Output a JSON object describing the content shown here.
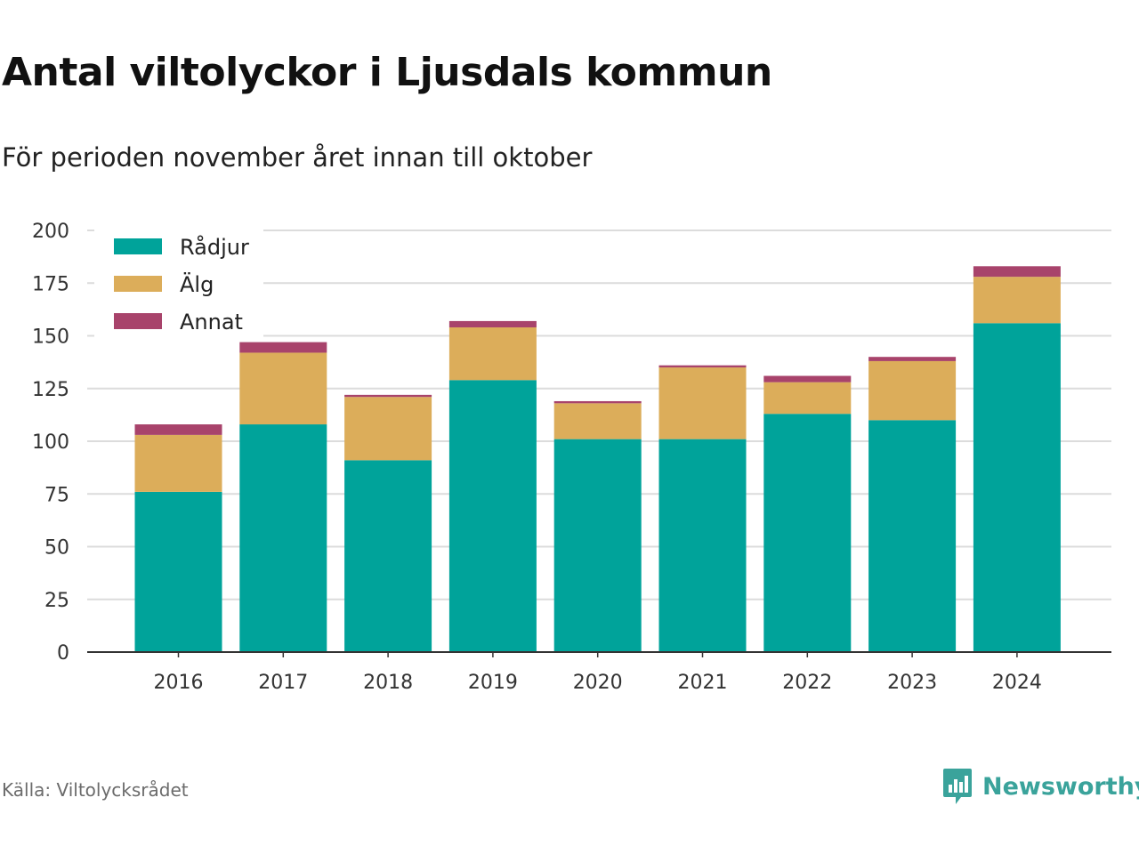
{
  "header": {
    "title": "Antal viltolyckor i Ljusdals kommun",
    "subtitle": "För perioden november året innan till oktober"
  },
  "footer": {
    "source": "Källa: Viltolycksrådet",
    "brand": "Newsworthy",
    "brand_icon": "bar-chart-speech-bubble-icon",
    "brand_color": "#3aa39b"
  },
  "chart_data": {
    "type": "bar",
    "stacked": true,
    "categories": [
      "2016",
      "2017",
      "2018",
      "2019",
      "2020",
      "2021",
      "2022",
      "2023",
      "2024"
    ],
    "series": [
      {
        "name": "Rådjur",
        "color": "#00a39a",
        "values": [
          76,
          108,
          91,
          129,
          101,
          101,
          113,
          110,
          156
        ]
      },
      {
        "name": "Älg",
        "color": "#dcad5a",
        "values": [
          27,
          34,
          30,
          25,
          17,
          34,
          15,
          28,
          22
        ]
      },
      {
        "name": "Annat",
        "color": "#a8436b",
        "values": [
          5,
          5,
          1,
          3,
          1,
          1,
          3,
          2,
          5
        ]
      }
    ],
    "ylim": [
      0,
      200
    ],
    "yticks": [
      0,
      25,
      50,
      75,
      100,
      125,
      150,
      175,
      200
    ],
    "xlabel": "",
    "ylabel": "",
    "grid": true,
    "legend_position": "top-left"
  }
}
